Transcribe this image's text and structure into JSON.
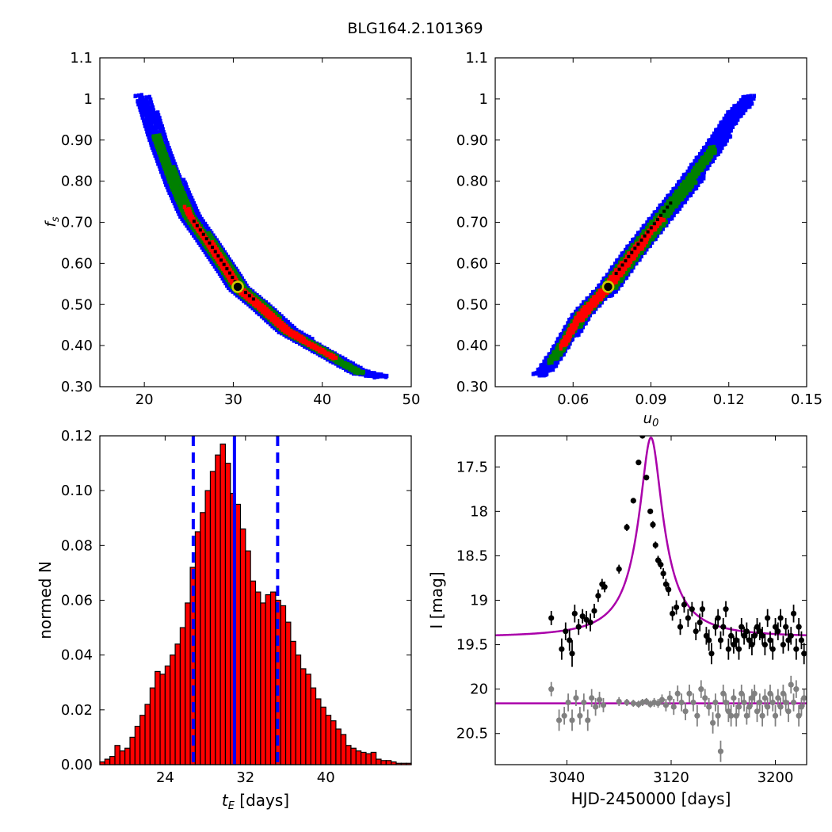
{
  "figure_title": "BLG164.2.101369",
  "chart_data": [
    {
      "id": "fs_vs_tE",
      "type": "heatmap",
      "ylabel": "f_s",
      "xlabel": "",
      "xlim": [
        15,
        50
      ],
      "ylim": [
        0.3,
        1.1
      ],
      "xticks": [
        20,
        30,
        40,
        50
      ],
      "yticks": [
        0.3,
        0.4,
        0.5,
        0.6,
        0.7,
        0.8,
        0.9,
        1.0,
        1.1
      ],
      "confidence_colors": {
        "outer": "#0000ff",
        "mid": "#008000",
        "inner": "#ff0000",
        "core": "#000000"
      },
      "ridge": [
        [
          19.8,
          1.01
        ],
        [
          21.5,
          0.9
        ],
        [
          23.5,
          0.79
        ],
        [
          25,
          0.72
        ],
        [
          27,
          0.66
        ],
        [
          29.5,
          0.58
        ],
        [
          30.5,
          0.545
        ],
        [
          33,
          0.5
        ],
        [
          36,
          0.44
        ],
        [
          40,
          0.39
        ],
        [
          44,
          0.34
        ],
        [
          46.5,
          0.33
        ]
      ],
      "best_fit": [
        30.5,
        0.543
      ]
    },
    {
      "id": "fs_vs_u0",
      "type": "heatmap",
      "xlabel": "u_0",
      "ylabel": "",
      "xlim": [
        0.03,
        0.15
      ],
      "ylim": [
        0.3,
        1.1
      ],
      "xticks": [
        0.06,
        0.09,
        0.12,
        0.15
      ],
      "yticks": [
        0.3,
        0.4,
        0.5,
        0.6,
        0.7,
        0.8,
        0.9,
        1.0,
        1.1
      ],
      "confidence_colors": {
        "outer": "#0000ff",
        "mid": "#008000",
        "inner": "#ff0000",
        "core": "#000000"
      },
      "ridge": [
        [
          0.047,
          0.33
        ],
        [
          0.055,
          0.4
        ],
        [
          0.063,
          0.48
        ],
        [
          0.073,
          0.545
        ],
        [
          0.083,
          0.63
        ],
        [
          0.093,
          0.71
        ],
        [
          0.103,
          0.79
        ],
        [
          0.113,
          0.88
        ],
        [
          0.122,
          0.97
        ],
        [
          0.128,
          1.01
        ]
      ],
      "best_fit": [
        0.0735,
        0.543
      ]
    },
    {
      "id": "tE_histogram",
      "type": "bar",
      "xlabel": "t_E [days]",
      "ylabel": "normed N",
      "xlim": [
        17.5,
        48.5
      ],
      "ylim": [
        0,
        0.12
      ],
      "xticks": [
        24,
        32,
        40
      ],
      "yticks": [
        0.0,
        0.02,
        0.04,
        0.06,
        0.08,
        0.1,
        0.12
      ],
      "ytick_labels": [
        "0.00",
        "0.02",
        "0.04",
        "0.06",
        "0.08",
        "0.10",
        "0.12"
      ],
      "bin_start": 17.5,
      "bin_width": 0.5,
      "values": [
        0.001,
        0.002,
        0.003,
        0.007,
        0.005,
        0.006,
        0.01,
        0.014,
        0.018,
        0.022,
        0.028,
        0.034,
        0.033,
        0.036,
        0.04,
        0.044,
        0.05,
        0.059,
        0.072,
        0.085,
        0.092,
        0.1,
        0.107,
        0.113,
        0.117,
        0.11,
        0.099,
        0.095,
        0.086,
        0.078,
        0.067,
        0.063,
        0.059,
        0.062,
        0.063,
        0.06,
        0.058,
        0.052,
        0.045,
        0.04,
        0.035,
        0.033,
        0.028,
        0.024,
        0.021,
        0.018,
        0.016,
        0.013,
        0.011,
        0.007,
        0.006,
        0.005,
        0.0045,
        0.004,
        0.0045,
        0.002,
        0.0015,
        0.0015,
        0.001,
        0.0005,
        0.0005,
        0.0005
      ],
      "bar_color": "#ff0000",
      "vlines": [
        {
          "x": 26.8,
          "style": "dashed",
          "color": "#0000ff"
        },
        {
          "x": 30.9,
          "style": "solid",
          "color": "#0000ff"
        },
        {
          "x": 35.2,
          "style": "dashed",
          "color": "#0000ff"
        }
      ]
    },
    {
      "id": "light_curve",
      "type": "scatter",
      "xlabel": "HJD-2450000 [days]",
      "ylabel": "I [mag]",
      "xlim": [
        2985,
        3224
      ],
      "ylim": [
        20.85,
        17.15
      ],
      "xticks": [
        3040,
        3120,
        3200
      ],
      "yticks": [
        17.5,
        18.0,
        18.5,
        19.0,
        19.5,
        20.0,
        20.5
      ],
      "model_color": "#aa00aa",
      "model": {
        "t0": 3104.5,
        "base_mag": 19.42,
        "peak_mag": 17.17,
        "tau": 7.0
      },
      "baseline_model_mag": 20.16,
      "series": [
        {
          "color": "#000000",
          "points": [
            [
              3028,
              19.2,
              0.08
            ],
            [
              3036,
              19.55,
              0.12
            ],
            [
              3039,
              19.35,
              0.1
            ],
            [
              3042,
              19.45,
              0.12
            ],
            [
              3044,
              19.6,
              0.15
            ],
            [
              3046,
              19.15,
              0.1
            ],
            [
              3049,
              19.3,
              0.09
            ],
            [
              3052,
              19.18,
              0.08
            ],
            [
              3055,
              19.22,
              0.1
            ],
            [
              3058,
              19.25,
              0.1
            ],
            [
              3061,
              19.12,
              0.08
            ],
            [
              3064,
              18.95,
              0.07
            ],
            [
              3067,
              18.82,
              0.06
            ],
            [
              3069,
              18.85,
              0.06
            ],
            [
              3080,
              18.65,
              0.05
            ],
            [
              3086,
              18.18,
              0.04
            ],
            [
              3091,
              17.88,
              0.03
            ],
            [
              3095,
              17.45,
              0.03
            ],
            [
              3098,
              17.15,
              0.03
            ],
            [
              3101,
              17.62,
              0.03
            ],
            [
              3104,
              18.0,
              0.03
            ],
            [
              3106,
              18.15,
              0.04
            ],
            [
              3108,
              18.38,
              0.04
            ],
            [
              3110,
              18.55,
              0.05
            ],
            [
              3112,
              18.6,
              0.05
            ],
            [
              3114,
              18.7,
              0.06
            ],
            [
              3116,
              18.82,
              0.06
            ],
            [
              3118,
              18.88,
              0.07
            ],
            [
              3121,
              19.15,
              0.08
            ],
            [
              3124,
              19.08,
              0.08
            ],
            [
              3127,
              19.3,
              0.09
            ],
            [
              3130,
              19.05,
              0.09
            ],
            [
              3133,
              19.2,
              0.1
            ],
            [
              3136,
              19.1,
              0.08
            ],
            [
              3139,
              19.35,
              0.1
            ],
            [
              3142,
              19.25,
              0.1
            ],
            [
              3144,
              19.1,
              0.09
            ],
            [
              3147,
              19.4,
              0.1
            ],
            [
              3149,
              19.45,
              0.12
            ],
            [
              3151,
              19.6,
              0.12
            ],
            [
              3154,
              19.3,
              0.1
            ],
            [
              3156,
              19.2,
              0.1
            ],
            [
              3158,
              19.45,
              0.1
            ],
            [
              3160,
              19.3,
              0.1
            ],
            [
              3162,
              19.1,
              0.09
            ],
            [
              3164,
              19.55,
              0.12
            ],
            [
              3166,
              19.4,
              0.1
            ],
            [
              3168,
              19.5,
              0.1
            ],
            [
              3170,
              19.45,
              0.1
            ],
            [
              3172,
              19.55,
              0.12
            ],
            [
              3174,
              19.3,
              0.1
            ],
            [
              3176,
              19.4,
              0.1
            ],
            [
              3178,
              19.35,
              0.1
            ],
            [
              3180,
              19.45,
              0.1
            ],
            [
              3182,
              19.5,
              0.12
            ],
            [
              3184,
              19.4,
              0.1
            ],
            [
              3186,
              19.3,
              0.1
            ],
            [
              3188,
              19.35,
              0.1
            ],
            [
              3190,
              19.4,
              0.1
            ],
            [
              3192,
              19.5,
              0.12
            ],
            [
              3194,
              19.2,
              0.1
            ],
            [
              3196,
              19.45,
              0.1
            ],
            [
              3198,
              19.55,
              0.12
            ],
            [
              3200,
              19.3,
              0.1
            ],
            [
              3202,
              19.35,
              0.1
            ],
            [
              3204,
              19.2,
              0.1
            ],
            [
              3206,
              19.5,
              0.1
            ],
            [
              3208,
              19.3,
              0.1
            ],
            [
              3210,
              19.45,
              0.12
            ],
            [
              3212,
              19.4,
              0.1
            ],
            [
              3214,
              19.15,
              0.1
            ],
            [
              3216,
              19.55,
              0.12
            ],
            [
              3218,
              19.3,
              0.1
            ],
            [
              3220,
              19.45,
              0.1
            ],
            [
              3222,
              19.6,
              0.12
            ]
          ]
        },
        {
          "color": "#808080",
          "points": [
            [
              3028,
              20.0,
              0.08
            ],
            [
              3034,
              20.35,
              0.12
            ],
            [
              3038,
              20.3,
              0.1
            ],
            [
              3041,
              20.15,
              0.1
            ],
            [
              3044,
              20.35,
              0.12
            ],
            [
              3047,
              20.1,
              0.09
            ],
            [
              3050,
              20.3,
              0.1
            ],
            [
              3053,
              20.15,
              0.1
            ],
            [
              3056,
              20.35,
              0.12
            ],
            [
              3059,
              20.1,
              0.1
            ],
            [
              3062,
              20.2,
              0.1
            ],
            [
              3065,
              20.12,
              0.09
            ],
            [
              3068,
              20.18,
              0.08
            ],
            [
              3080,
              20.14,
              0.05
            ],
            [
              3086,
              20.15,
              0.04
            ],
            [
              3091,
              20.16,
              0.04
            ],
            [
              3095,
              20.17,
              0.04
            ],
            [
              3098,
              20.15,
              0.04
            ],
            [
              3101,
              20.14,
              0.04
            ],
            [
              3104,
              20.17,
              0.04
            ],
            [
              3107,
              20.15,
              0.05
            ],
            [
              3110,
              20.16,
              0.05
            ],
            [
              3113,
              20.12,
              0.06
            ],
            [
              3116,
              20.18,
              0.07
            ],
            [
              3119,
              20.1,
              0.08
            ],
            [
              3122,
              20.2,
              0.09
            ],
            [
              3125,
              20.05,
              0.09
            ],
            [
              3128,
              20.15,
              0.1
            ],
            [
              3131,
              20.25,
              0.1
            ],
            [
              3134,
              20.05,
              0.1
            ],
            [
              3137,
              20.15,
              0.1
            ],
            [
              3140,
              20.3,
              0.12
            ],
            [
              3143,
              20.0,
              0.1
            ],
            [
              3146,
              20.1,
              0.1
            ],
            [
              3149,
              20.2,
              0.1
            ],
            [
              3152,
              20.38,
              0.12
            ],
            [
              3154,
              20.15,
              0.1
            ],
            [
              3156,
              20.3,
              0.12
            ],
            [
              3158,
              20.7,
              0.12
            ],
            [
              3160,
              20.05,
              0.1
            ],
            [
              3162,
              20.15,
              0.1
            ],
            [
              3164,
              20.25,
              0.12
            ],
            [
              3166,
              20.3,
              0.12
            ],
            [
              3168,
              20.1,
              0.1
            ],
            [
              3170,
              20.3,
              0.12
            ],
            [
              3172,
              20.2,
              0.1
            ],
            [
              3174,
              20.05,
              0.1
            ],
            [
              3176,
              20.15,
              0.1
            ],
            [
              3178,
              20.3,
              0.1
            ],
            [
              3180,
              20.2,
              0.12
            ],
            [
              3182,
              20.1,
              0.1
            ],
            [
              3184,
              20.05,
              0.1
            ],
            [
              3186,
              20.25,
              0.12
            ],
            [
              3188,
              20.15,
              0.1
            ],
            [
              3190,
              20.3,
              0.12
            ],
            [
              3192,
              20.1,
              0.1
            ],
            [
              3194,
              20.2,
              0.1
            ],
            [
              3196,
              20.05,
              0.1
            ],
            [
              3198,
              20.15,
              0.1
            ],
            [
              3200,
              20.3,
              0.12
            ],
            [
              3202,
              20.1,
              0.1
            ],
            [
              3204,
              20.2,
              0.1
            ],
            [
              3206,
              20.05,
              0.1
            ],
            [
              3208,
              20.15,
              0.1
            ],
            [
              3210,
              20.25,
              0.12
            ],
            [
              3212,
              19.95,
              0.1
            ],
            [
              3214,
              20.15,
              0.1
            ],
            [
              3216,
              20.0,
              0.1
            ],
            [
              3218,
              20.3,
              0.12
            ],
            [
              3220,
              20.2,
              0.1
            ],
            [
              3222,
              20.1,
              0.1
            ]
          ]
        }
      ]
    }
  ]
}
